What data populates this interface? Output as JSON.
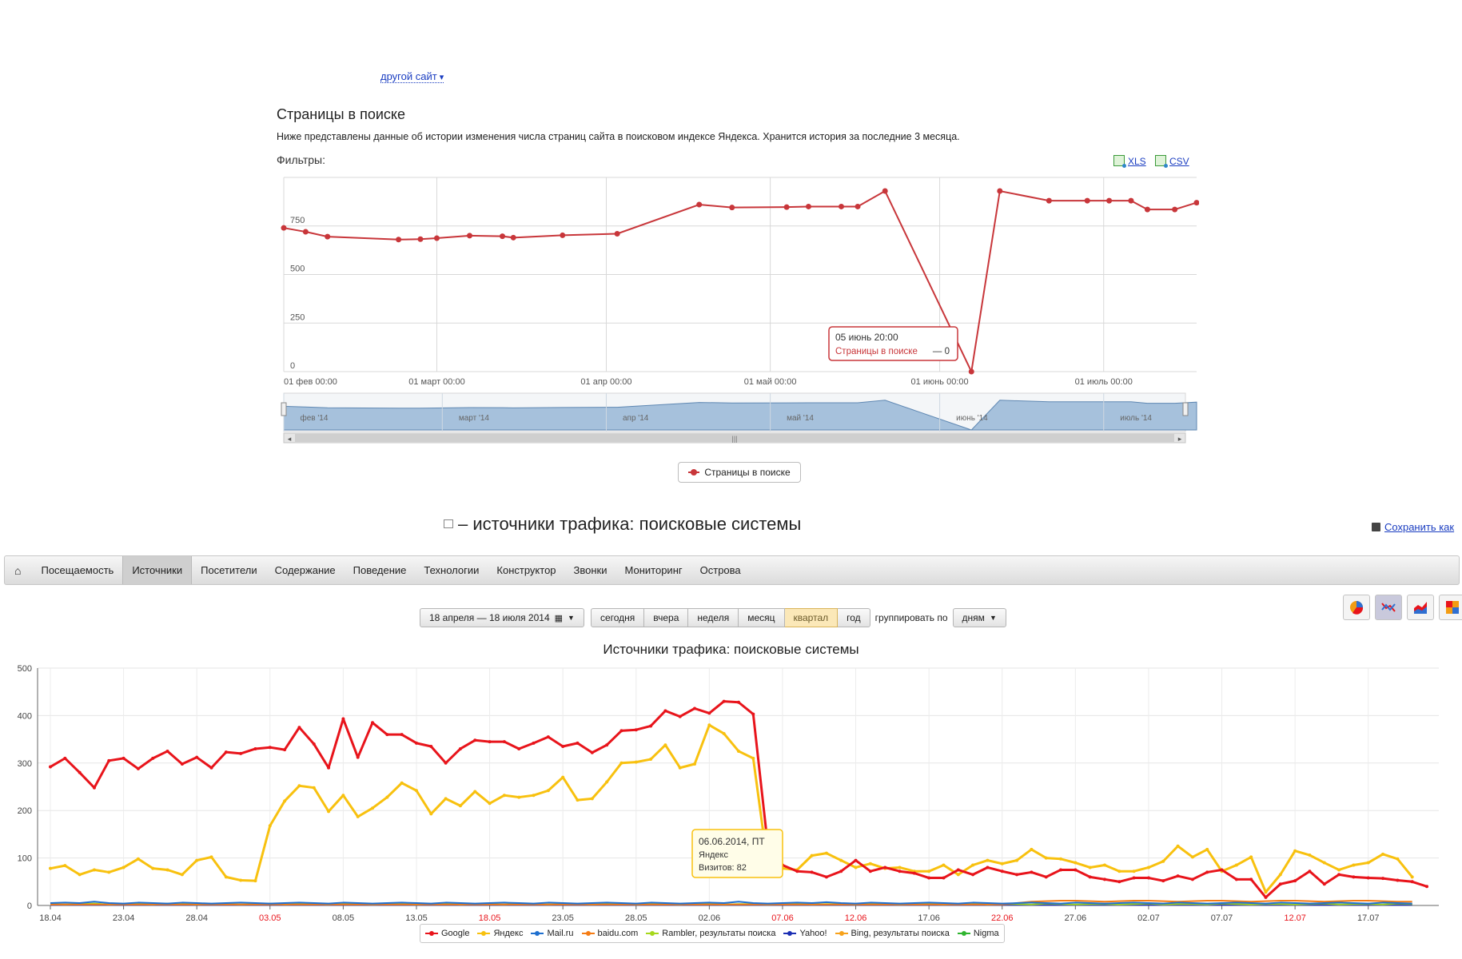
{
  "header": {
    "site_switch_label": "другой сайт"
  },
  "pages_section": {
    "title": "Страницы в поиске",
    "description": "Ниже представлены данные об истории изменения числа страниц сайта в поисковом индексе Яндекса. Хранится история за последние 3 месяца.",
    "filters_label": "Фильтры:",
    "export_xls": "XLS",
    "export_csv": "CSV",
    "tooltip": {
      "date": "05 июнь 20:00",
      "series": "Страницы в поиске",
      "value_text": "— 0"
    },
    "navigator_labels": [
      "фев '14",
      "март '14",
      "апр '14",
      "май '14",
      "июнь '14",
      "июль '14"
    ],
    "legend_label": "Страницы в поиске"
  },
  "traffic_section": {
    "title": "– источники трафика: поисковые системы",
    "save_as_label": "Сохранить как",
    "tabs": [
      "Посещаемость",
      "Источники",
      "Посетители",
      "Содержание",
      "Поведение",
      "Технологии",
      "Конструктор",
      "Звонки",
      "Мониторинг",
      "Острова"
    ],
    "active_tab": "Источники",
    "date_range": "18 апреля — 18 июля 2014",
    "period_buttons": [
      "сегодня",
      "вчера",
      "неделя",
      "месяц",
      "квартал",
      "год"
    ],
    "selected_period": "квартал",
    "group_by_label": "группировать по",
    "group_by_value": "дням",
    "chart_title": "Источники трафика: поисковые системы",
    "tooltip": {
      "date": "06.06.2014, ПТ",
      "series": "Яндекс",
      "value_text": "Визитов: 82"
    },
    "legend": [
      {
        "name": "Google",
        "color": "#e8141b"
      },
      {
        "name": "Яндекс",
        "color": "#f8c10f"
      },
      {
        "name": "Mail.ru",
        "color": "#1e6fcf"
      },
      {
        "name": "baidu.com",
        "color": "#f57c14"
      },
      {
        "name": "Rambler, результаты поиска",
        "color": "#a6d81c"
      },
      {
        "name": "Yahoo!",
        "color": "#1c2fb4"
      },
      {
        "name": "Bing, результаты поиска",
        "color": "#f7a21b"
      },
      {
        "name": "Nigma",
        "color": "#2fb52f"
      }
    ]
  },
  "chart_data": [
    {
      "type": "line",
      "title": "",
      "y_ticks": [
        0,
        250,
        500,
        750
      ],
      "ylim": [
        0,
        1000
      ],
      "x_tick_labels": [
        "01 фев 00:00",
        "01 март 00:00",
        "01 апр 00:00",
        "01 май 00:00",
        "01 июнь 00:00",
        "01 июль 00:00"
      ],
      "x_tick_days": [
        0,
        28,
        59,
        89,
        120,
        150
      ],
      "x_range_days": [
        0,
        167
      ],
      "series": [
        {
          "name": "Страницы в поиске",
          "color": "#c8363a",
          "points": [
            [
              0,
              740
            ],
            [
              4,
              720
            ],
            [
              8,
              695
            ],
            [
              21,
              680
            ],
            [
              25,
              682
            ],
            [
              28,
              687
            ],
            [
              34,
              700
            ],
            [
              40,
              697
            ],
            [
              42,
              690
            ],
            [
              51,
              702
            ],
            [
              61,
              710
            ],
            [
              76,
              860
            ],
            [
              82,
              845
            ],
            [
              92,
              847
            ],
            [
              96,
              850
            ],
            [
              102,
              850
            ],
            [
              105,
              850
            ],
            [
              110,
              930
            ],
            [
              125.8,
              0
            ],
            [
              131,
              930
            ],
            [
              140,
              880
            ],
            [
              147,
              880
            ],
            [
              151,
              880
            ],
            [
              155,
              880
            ],
            [
              158,
              835
            ],
            [
              163,
              835
            ],
            [
              167,
              870
            ]
          ]
        }
      ]
    },
    {
      "type": "line",
      "title": "Источники трафика: поисковые системы",
      "ylim": [
        0,
        500
      ],
      "y_ticks": [
        0,
        100,
        200,
        300,
        400,
        500
      ],
      "x_tick_labels": [
        "18.04",
        "23.04",
        "28.04",
        "03.05",
        "08.05",
        "13.05",
        "18.05",
        "23.05",
        "28.05",
        "02.06",
        "07.06",
        "12.06",
        "17.06",
        "22.06",
        "27.06",
        "02.07",
        "07.07",
        "12.07",
        "17.07"
      ],
      "x_tick_red": [
        "03.05",
        "18.05",
        "07.06",
        "12.06",
        "22.06",
        "12.07"
      ],
      "series": [
        {
          "name": "Google",
          "color": "#e8141b",
          "values": [
            292,
            310,
            280,
            248,
            305,
            310,
            288,
            310,
            325,
            298,
            312,
            290,
            323,
            320,
            330,
            333,
            328,
            375,
            340,
            290,
            393,
            312,
            385,
            360,
            360,
            342,
            335,
            300,
            330,
            348,
            345,
            345,
            330,
            342,
            355,
            335,
            342,
            322,
            338,
            368,
            370,
            378,
            410,
            398,
            415,
            405,
            430,
            428,
            403,
            125,
            85,
            72,
            70,
            60,
            72,
            95,
            72,
            80,
            72,
            68,
            58,
            58,
            75,
            65,
            80,
            72,
            65,
            70,
            60,
            75,
            75,
            60,
            55,
            50,
            58,
            58,
            52,
            62,
            55,
            70,
            75,
            55,
            55,
            17,
            45,
            52,
            72,
            45,
            65,
            60,
            58,
            57,
            53,
            50,
            40
          ]
        },
        {
          "name": "Яндекс",
          "color": "#f8c10f",
          "values": [
            78,
            84,
            65,
            75,
            70,
            80,
            98,
            78,
            75,
            65,
            95,
            102,
            60,
            53,
            52,
            168,
            220,
            252,
            248,
            198,
            232,
            187,
            205,
            228,
            258,
            242,
            193,
            225,
            210,
            240,
            215,
            232,
            228,
            232,
            242,
            270,
            222,
            225,
            260,
            300,
            302,
            308,
            338,
            290,
            298,
            380,
            362,
            325,
            310,
            82,
            78,
            75,
            105,
            110,
            95,
            80,
            88,
            78,
            80,
            72,
            72,
            85,
            65,
            85,
            95,
            88,
            95,
            118,
            100,
            98,
            90,
            80,
            85,
            72,
            72,
            80,
            93,
            125,
            102,
            118,
            72,
            85,
            102,
            28,
            65,
            115,
            106,
            90,
            75,
            85,
            90,
            108,
            98,
            60
          ]
        },
        {
          "name": "Mail.ru",
          "color": "#1e6fcf",
          "values": [
            5,
            6,
            5,
            8,
            5,
            4,
            6,
            5,
            4,
            6,
            5,
            4,
            5,
            6,
            5,
            4,
            5,
            6,
            5,
            4,
            6,
            5,
            4,
            5,
            6,
            5,
            4,
            6,
            5,
            4,
            5,
            6,
            5,
            4,
            6,
            5,
            4,
            5,
            6,
            5,
            4,
            6,
            5,
            4,
            5,
            6,
            5,
            8,
            5,
            4,
            5,
            6,
            5,
            7,
            5,
            4,
            6,
            5,
            4,
            5,
            6,
            5,
            4,
            6,
            5,
            4,
            5,
            6,
            5,
            4,
            6,
            5,
            4,
            5,
            6,
            5,
            4,
            6,
            5,
            4,
            5,
            6,
            5,
            4,
            6,
            5,
            4,
            5,
            6,
            5,
            4,
            6,
            5,
            4
          ]
        },
        {
          "name": "baidu.com",
          "color": "#f57c14",
          "values": [
            2,
            2,
            2,
            2,
            2,
            2,
            2,
            2,
            2,
            2,
            2,
            2,
            2,
            2,
            2,
            2,
            2,
            2,
            2,
            2,
            2,
            2,
            2,
            2,
            2,
            2,
            2,
            2,
            2,
            2,
            2,
            2,
            2,
            2,
            2,
            2,
            2,
            2,
            2,
            2,
            2,
            2,
            2,
            2,
            2,
            2,
            2,
            2,
            2,
            2,
            2,
            2,
            2,
            2,
            2,
            2,
            2,
            2,
            2,
            2,
            2,
            2,
            2,
            2,
            2,
            2,
            5,
            8,
            9,
            10,
            10,
            9,
            8,
            9,
            10,
            10,
            9,
            8,
            9,
            10,
            10,
            9,
            8,
            9,
            10,
            10,
            9,
            8,
            9,
            10,
            10,
            9,
            8,
            8
          ]
        },
        {
          "name": "Rambler, результаты поиска",
          "color": "#a6d81c",
          "values": [
            3,
            2,
            3,
            4,
            2,
            3,
            3,
            2,
            4,
            3,
            2,
            3,
            3,
            2,
            3,
            4,
            2,
            3,
            3,
            2,
            4,
            3,
            2,
            3,
            3,
            2,
            3,
            4,
            2,
            3,
            3,
            2,
            4,
            3,
            2,
            3,
            3,
            2,
            3,
            4,
            2,
            3,
            3,
            2,
            4,
            3,
            2,
            3,
            3,
            2,
            3,
            4,
            2,
            3,
            3,
            2,
            4,
            3,
            2,
            3,
            3,
            2,
            3,
            4,
            2,
            3,
            3,
            2,
            4,
            3,
            2,
            3,
            3,
            2,
            3,
            4,
            2,
            3,
            3,
            2,
            4,
            3,
            2,
            3,
            3,
            2,
            3,
            4,
            2,
            3,
            3,
            2,
            4,
            3
          ]
        },
        {
          "name": "Yahoo!",
          "color": "#1c2fb4",
          "values": [
            1,
            1,
            1,
            1,
            1,
            1,
            1,
            1,
            1,
            1,
            1,
            1,
            1,
            1,
            1,
            1,
            1,
            1,
            1,
            1,
            1,
            1,
            1,
            1,
            1,
            1,
            1,
            1,
            1,
            1,
            1,
            1,
            1,
            1,
            1,
            1,
            1,
            1,
            1,
            1,
            1,
            1,
            1,
            1,
            1,
            1,
            1,
            1,
            1,
            1,
            1,
            1,
            1,
            1,
            1,
            1,
            1,
            1,
            1,
            1,
            1,
            1,
            1,
            1,
            1,
            1,
            1,
            1,
            1,
            1,
            1,
            1,
            1,
            1,
            1,
            1,
            1,
            1,
            1,
            1,
            1,
            1,
            1,
            1,
            1,
            1,
            1,
            1,
            1,
            1,
            1,
            1,
            1,
            1
          ]
        },
        {
          "name": "Bing, результаты поиска",
          "color": "#f7a21b",
          "values": [
            1,
            1,
            1,
            1,
            1,
            1,
            1,
            1,
            1,
            1,
            1,
            1,
            1,
            1,
            1,
            1,
            1,
            1,
            1,
            1,
            1,
            1,
            1,
            1,
            1,
            1,
            1,
            1,
            1,
            1,
            1,
            1,
            1,
            1,
            1,
            1,
            1,
            1,
            1,
            1,
            1,
            1,
            1,
            1,
            1,
            1,
            1,
            1,
            1,
            1,
            1,
            1,
            1,
            1,
            1,
            1,
            1,
            1,
            1,
            1,
            1,
            1,
            1,
            1,
            1,
            1,
            1,
            1,
            1,
            1,
            1,
            1,
            1,
            1,
            1,
            1,
            1,
            1,
            1,
            1,
            1,
            1,
            1,
            1,
            1,
            1,
            1,
            1,
            1,
            1,
            1,
            1,
            1,
            1
          ]
        },
        {
          "name": "Nigma",
          "color": "#2fb52f",
          "values": [
            2,
            1,
            2,
            1,
            2,
            1,
            2,
            1,
            2,
            1,
            2,
            1,
            2,
            1,
            2,
            1,
            2,
            1,
            2,
            1,
            2,
            1,
            2,
            1,
            2,
            1,
            2,
            1,
            2,
            1,
            2,
            1,
            2,
            1,
            2,
            1,
            2,
            1,
            2,
            1,
            2,
            1,
            2,
            1,
            2,
            1,
            2,
            1,
            2,
            1,
            2,
            1,
            2,
            1,
            2,
            1,
            2,
            1,
            2,
            1,
            2,
            1,
            2,
            1,
            2,
            1,
            2,
            1,
            2,
            1,
            2,
            1,
            2,
            1,
            2,
            1,
            2,
            1,
            2,
            1,
            2,
            1,
            2,
            1,
            2,
            1,
            2,
            1,
            2,
            1,
            2,
            1,
            2,
            1
          ]
        }
      ]
    }
  ]
}
